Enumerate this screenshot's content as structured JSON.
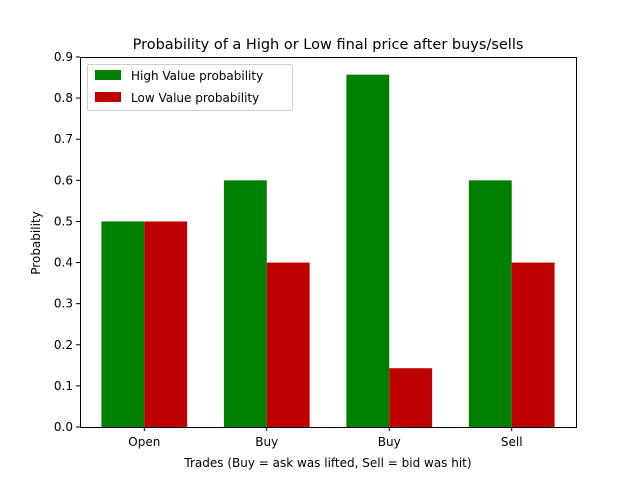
{
  "chart_data": {
    "type": "bar",
    "title": "Probability of a High or Low final price after buys/sells",
    "xlabel": "Trades (Buy = ask was lifted, Sell = bid was hit)",
    "ylabel": "Probability",
    "categories": [
      "Open",
      "Buy",
      "Buy",
      "Sell"
    ],
    "series": [
      {
        "name": "High Value probability",
        "color": "#008000",
        "values": [
          0.5,
          0.6,
          0.857,
          0.6
        ]
      },
      {
        "name": "Low Value probability",
        "color": "#bf0000",
        "values": [
          0.5,
          0.4,
          0.143,
          0.4
        ]
      }
    ],
    "ylim": [
      0,
      0.9
    ],
    "yticks": [
      "0.0",
      "0.1",
      "0.2",
      "0.3",
      "0.4",
      "0.5",
      "0.6",
      "0.7",
      "0.8",
      "0.9"
    ],
    "grid": false,
    "legend_position": "top-left"
  }
}
